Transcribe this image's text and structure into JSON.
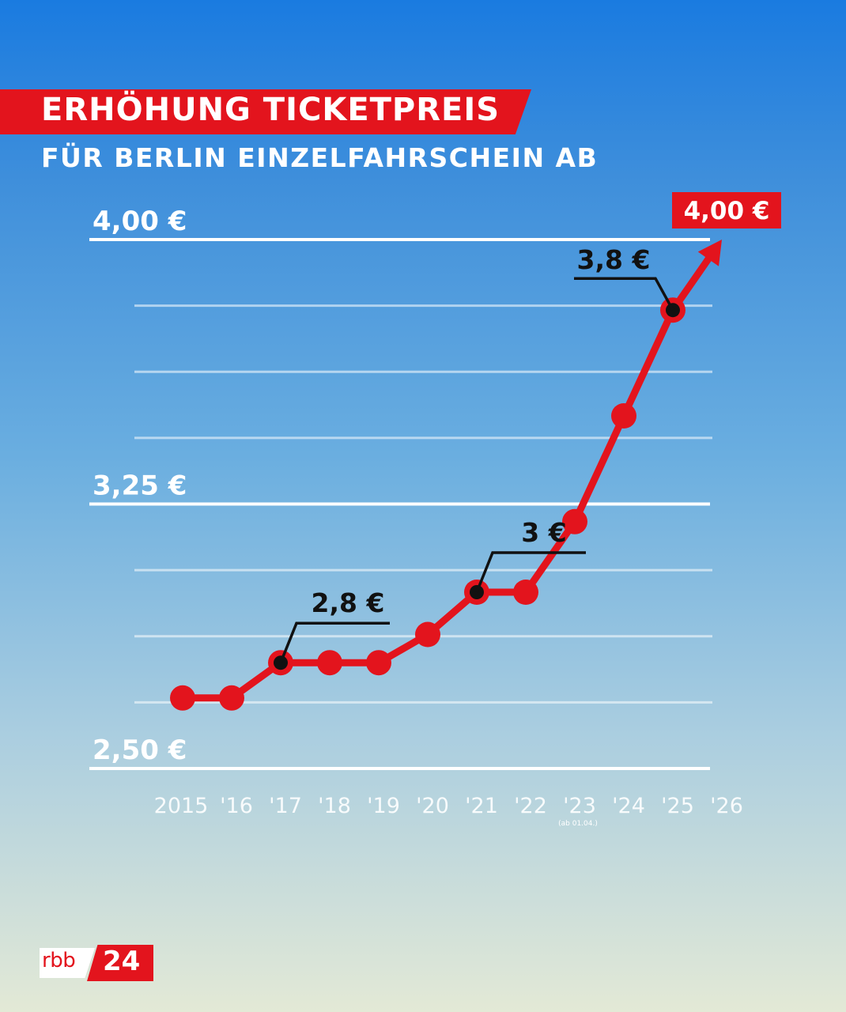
{
  "header": {
    "title": "ERHÖHUNG TICKETPREIS",
    "subtitle": "FÜR BERLIN EINZELFAHRSCHEIN AB"
  },
  "logo": {
    "rbb": "rbb",
    "num": "24"
  },
  "colors": {
    "accent": "#e3141d",
    "grid": "#ffffff",
    "label": "#111111"
  },
  "chart_data": {
    "type": "line",
    "title": "ERHÖHUNG TICKETPREIS",
    "subtitle": "FÜR BERLIN EINZELFAHRSCHEIN AB",
    "categories": [
      "2015",
      "'16",
      "'17",
      "'18",
      "'19",
      "'20",
      "'21",
      "'22",
      "'23",
      "'24",
      "'25",
      "'26"
    ],
    "x_note": {
      "category": "'23",
      "text": "(ab 01.04.)"
    },
    "values": [
      2.7,
      2.7,
      2.8,
      2.8,
      2.8,
      2.88,
      3.0,
      3.0,
      3.2,
      3.5,
      3.8,
      4.0
    ],
    "ylim": [
      2.5,
      4.0
    ],
    "yticks": [
      2.5,
      3.25,
      4.0
    ],
    "ytick_labels": [
      "2,50 €",
      "3,25 €",
      "4,00 €"
    ],
    "minor_gridlines": [
      2.6875,
      2.875,
      3.0625,
      3.4375,
      3.625,
      3.8125
    ],
    "annotations": [
      {
        "category": "'17",
        "text": "2,8 €"
      },
      {
        "category": "'21",
        "text": "3 €"
      },
      {
        "category": "'25",
        "text": "3,8 €"
      }
    ],
    "end_label": {
      "category": "'26",
      "text": "4,00 €"
    },
    "grid": true
  }
}
